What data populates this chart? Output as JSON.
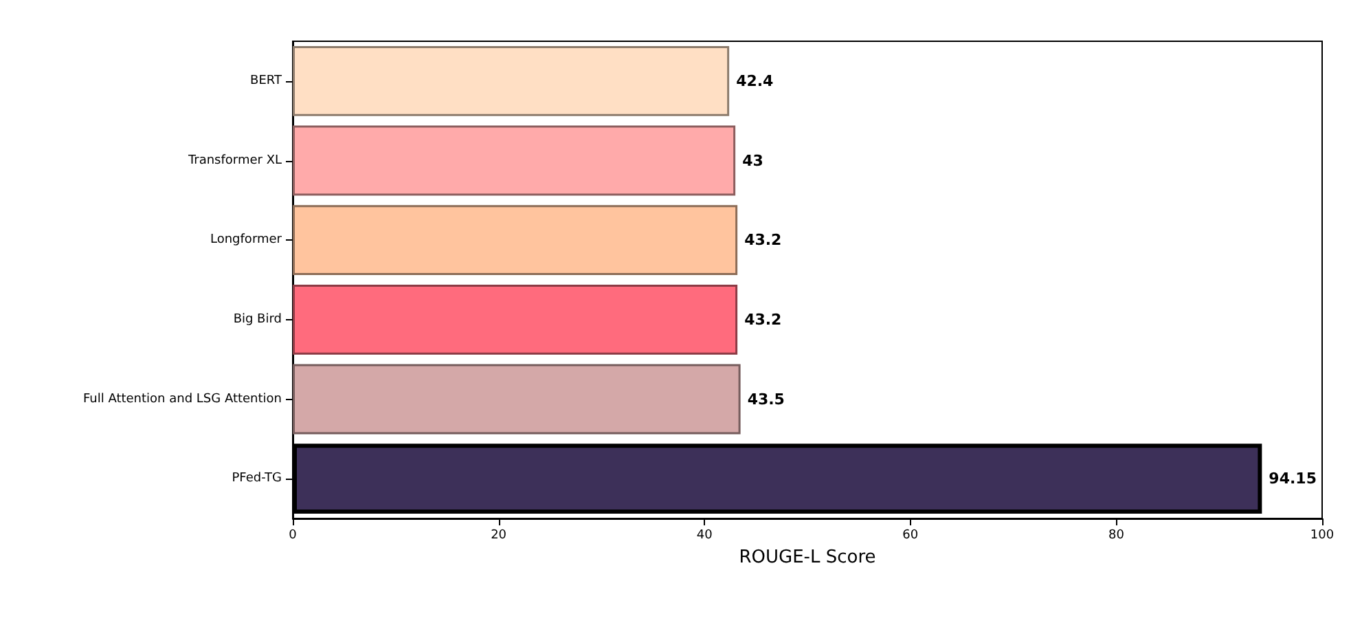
{
  "chart_data": {
    "type": "bar",
    "orientation": "horizontal",
    "xlabel": "ROUGE-L Score",
    "categories": [
      "BERT",
      "Transformer XL",
      "Longformer",
      "Big Bird",
      "Full Attention and LSG Attention",
      "PFed-TG"
    ],
    "values": [
      42.4,
      43,
      43.2,
      43.2,
      43.5,
      94.15
    ],
    "colors": [
      "#ffdfc4",
      "#ffaaaa",
      "#ffc49e",
      "#ff6b7d",
      "#d4a8a8",
      "#3d3059"
    ],
    "xlim": [
      0,
      100
    ],
    "xticks": [
      0,
      20,
      40,
      60,
      80,
      100
    ],
    "data_labels": true,
    "grid": false
  }
}
